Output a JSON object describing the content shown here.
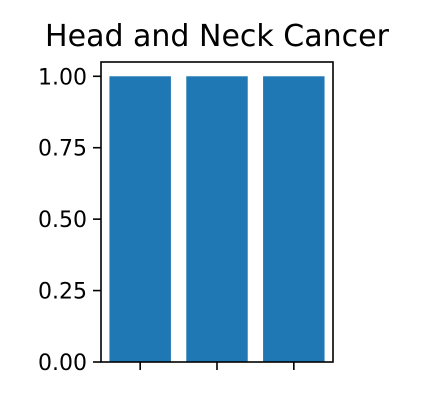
{
  "chart_data": {
    "type": "bar",
    "title": "Head and Neck Cancer",
    "xlabel": "",
    "ylabel": "",
    "categories": [
      "",
      "",
      ""
    ],
    "values": [
      1.0,
      1.0,
      1.0
    ],
    "ylim": [
      0,
      1.05
    ],
    "yticks": [
      0,
      0.25,
      0.5,
      0.75,
      1.0
    ],
    "ytick_labels": [
      "0.00",
      "0.25",
      "0.50",
      "0.75",
      "1.00"
    ],
    "grid": false,
    "legend": null,
    "colors": {
      "bar": "#1f77b4",
      "axis": "#000000"
    }
  }
}
